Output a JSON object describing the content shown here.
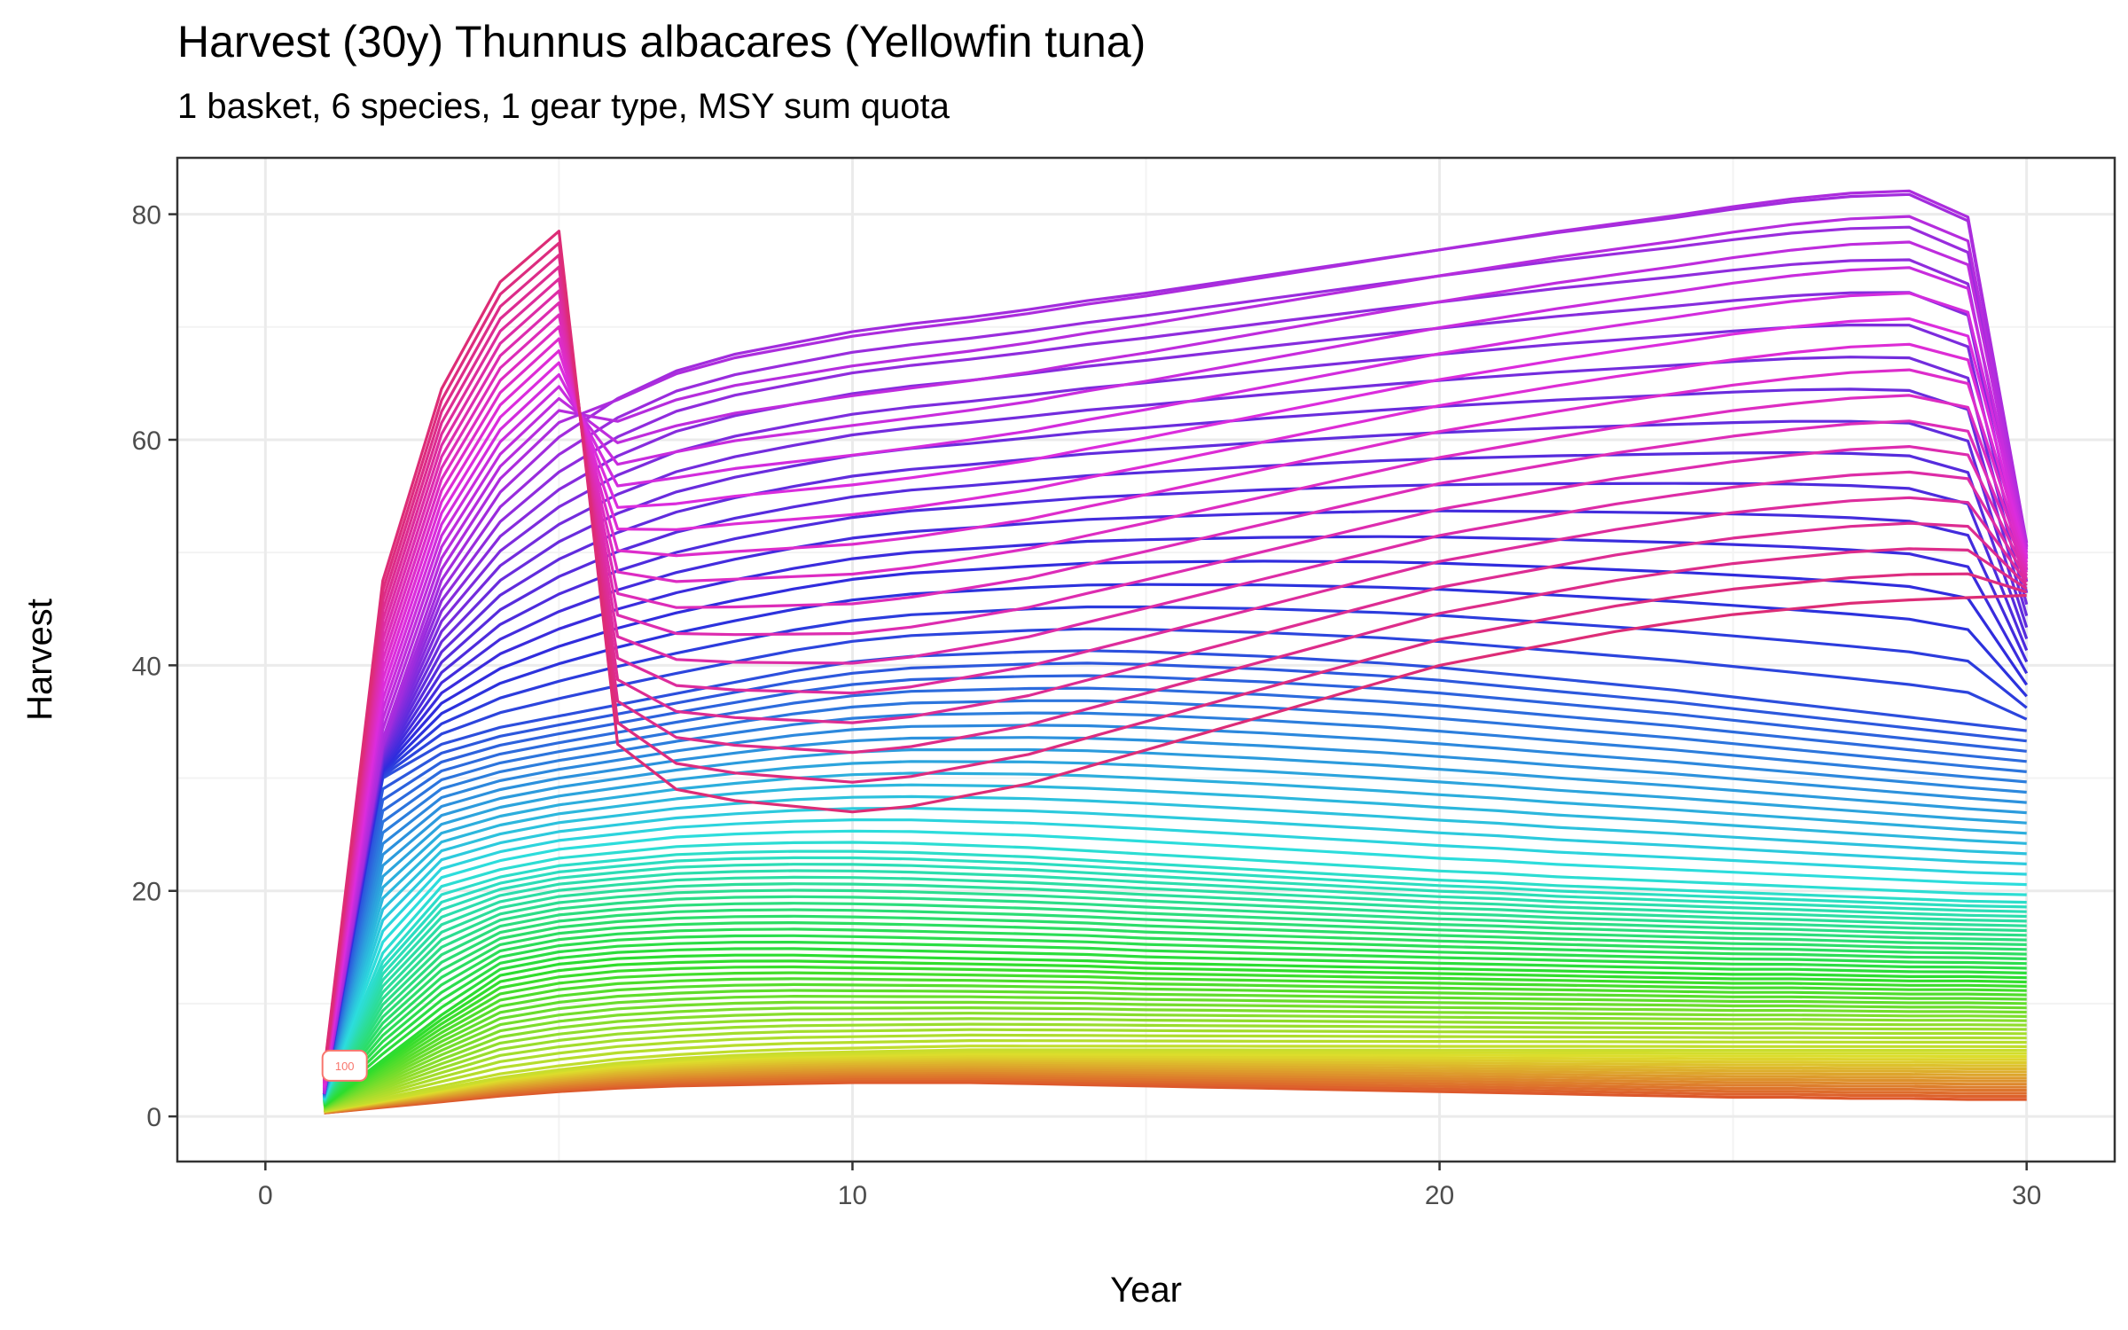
{
  "chart_data": {
    "type": "line",
    "title": "Harvest (30y) Thunnus albacares (Yellowfin tuna)",
    "subtitle": "1 basket, 6 species, 1 gear type, MSY sum quota",
    "xlabel": "Year",
    "ylabel": "Harvest",
    "xlim": [
      -1.5,
      31.5
    ],
    "ylim": [
      -4,
      85
    ],
    "x_ticks": [
      0,
      10,
      20,
      30
    ],
    "y_ticks": [
      0,
      20,
      40,
      60,
      80
    ],
    "x_tick_labels": [
      "0",
      "10",
      "20",
      "30"
    ],
    "y_tick_labels": [
      "0",
      "20",
      "40",
      "60",
      "80"
    ],
    "grid": true,
    "legend": "none",
    "label_box_text": "100",
    "n_series": 100,
    "series_description": "100 harvest trajectories over years 1 to 30; colour hue varies continuously across series (red-orange, olive, green, cyan, blue, violet, pink)",
    "key_series": [
      {
        "x": [
          1,
          2,
          3,
          4,
          5,
          6,
          7,
          8,
          9,
          10,
          11,
          12,
          13,
          14,
          15,
          16,
          17,
          18,
          19,
          20,
          21,
          22,
          23,
          24,
          25,
          26,
          27,
          28,
          29,
          30
        ],
        "values": [
          4,
          47.5,
          64.5,
          74,
          78.5,
          33,
          29,
          28,
          27.5,
          27,
          27.5,
          28.5,
          29.5,
          31,
          32.5,
          34,
          35.5,
          37,
          38.5,
          40,
          41,
          42,
          43,
          43.8,
          44.5,
          45,
          45.5,
          45.8,
          46,
          46.2
        ]
      },
      {
        "x": [
          1,
          2,
          3,
          4,
          5,
          6,
          7,
          8,
          9,
          10,
          11,
          12,
          13,
          14,
          15,
          16,
          17,
          18,
          19,
          20,
          21,
          22,
          23,
          24,
          25,
          26,
          27,
          28,
          29,
          30
        ],
        "values": [
          2,
          33,
          48,
          56,
          61,
          64.5,
          67,
          68.5,
          69.5,
          70.5,
          71.2,
          71.8,
          72.5,
          73.3,
          74,
          74.8,
          75.6,
          76.4,
          77.2,
          78,
          78.8,
          79.6,
          80.3,
          81,
          81.8,
          82.5,
          83,
          83.2,
          80.8,
          51
        ]
      },
      {
        "x": [
          1,
          2,
          3,
          4,
          5,
          6,
          7,
          8,
          9,
          10,
          11,
          12,
          13,
          14,
          15,
          16,
          17,
          18,
          19,
          20,
          21,
          22,
          23,
          24,
          25,
          26,
          27,
          28,
          29,
          30
        ],
        "values": [
          2,
          30,
          33,
          34.5,
          35.5,
          36.5,
          37.5,
          38.5,
          39.5,
          40.3,
          40.8,
          41,
          41.2,
          41.3,
          41.2,
          41,
          40.8,
          40.5,
          40.2,
          39.8,
          39.3,
          38.8,
          38.3,
          37.8,
          37.2,
          36.6,
          36,
          35.4,
          34.8,
          34.2
        ]
      },
      {
        "x": [
          1,
          2,
          3,
          4,
          5,
          6,
          7,
          8,
          9,
          10,
          11,
          12,
          13,
          14,
          15,
          16,
          17,
          18,
          19,
          20,
          21,
          22,
          23,
          24,
          25,
          26,
          27,
          28,
          29,
          30
        ],
        "values": [
          1.5,
          14,
          20,
          21.5,
          22.5,
          23,
          23.5,
          23.7,
          23.8,
          23.8,
          23.7,
          23.5,
          23.3,
          23,
          22.7,
          22.4,
          22.1,
          21.8,
          21.5,
          21.2,
          21,
          20.7,
          20.5,
          20.3,
          20.1,
          19.9,
          19.7,
          19.5,
          19.3,
          19.2
        ]
      },
      {
        "x": [
          1,
          2,
          3,
          4,
          5,
          6,
          7,
          8,
          9,
          10,
          11,
          12,
          13,
          14,
          15,
          16,
          17,
          18,
          19,
          20,
          21,
          22,
          23,
          24,
          25,
          26,
          27,
          28,
          29,
          30
        ],
        "values": [
          1,
          5,
          9,
          12.5,
          13.5,
          14,
          14.2,
          14.3,
          14.3,
          14.2,
          14.1,
          14,
          13.9,
          13.8,
          13.6,
          13.5,
          13.4,
          13.3,
          13.2,
          13.1,
          13,
          12.9,
          12.8,
          12.7,
          12.6,
          12.6,
          12.5,
          12.4,
          12.4,
          12.3
        ]
      },
      {
        "x": [
          1,
          2,
          3,
          4,
          5,
          6,
          7,
          8,
          9,
          10,
          11,
          12,
          13,
          14,
          15,
          16,
          17,
          18,
          19,
          20,
          21,
          22,
          23,
          24,
          25,
          26,
          27,
          28,
          29,
          30
        ],
        "values": [
          0.5,
          1.5,
          2.5,
          3.5,
          4.2,
          4.8,
          5.2,
          5.5,
          5.7,
          5.8,
          5.9,
          6,
          6,
          6,
          6,
          6,
          6,
          6,
          6,
          6,
          6,
          6,
          6,
          6,
          6,
          6,
          6,
          6,
          6,
          6
        ]
      },
      {
        "x": [
          1,
          2,
          3,
          4,
          5,
          6,
          7,
          8,
          9,
          10,
          11,
          12,
          13,
          14,
          15,
          16,
          17,
          18,
          19,
          20,
          21,
          22,
          23,
          24,
          25,
          26,
          27,
          28,
          29,
          30
        ],
        "values": [
          0.3,
          0.8,
          1.3,
          1.8,
          2.2,
          2.5,
          2.7,
          2.8,
          2.9,
          3,
          3,
          3,
          2.9,
          2.8,
          2.7,
          2.6,
          2.5,
          2.4,
          2.3,
          2.2,
          2.1,
          2,
          1.9,
          1.8,
          1.7,
          1.7,
          1.6,
          1.6,
          1.5,
          1.5
        ]
      }
    ],
    "colors": {
      "panel_border": "#333333",
      "grid_major": "#ebebeb",
      "grid_minor": "#f3f3f3",
      "tick_text": "#4d4d4d"
    }
  }
}
